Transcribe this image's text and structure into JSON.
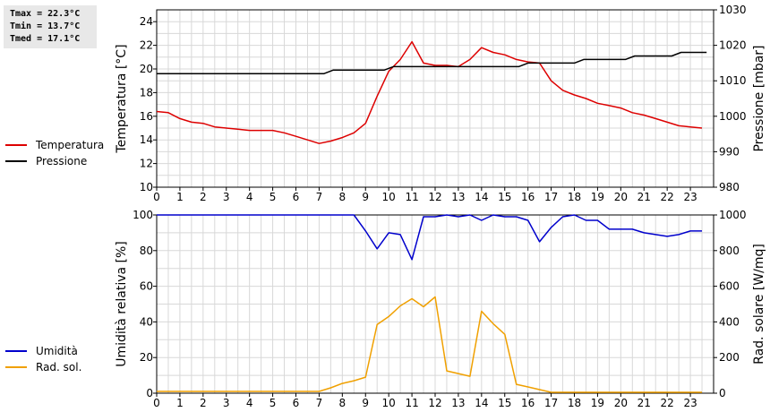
{
  "stats": {
    "tmax": "Tmax = 22.3°C",
    "tmin": "Tmin = 13.7°C",
    "tmed": "Tmed = 17.1°C"
  },
  "chart_data": [
    {
      "type": "line",
      "x_ticks": [
        "0",
        "1",
        "2",
        "3",
        "4",
        "5",
        "6",
        "7",
        "8",
        "9",
        "10",
        "11",
        "12",
        "13",
        "14",
        "15",
        "16",
        "17",
        "18",
        "19",
        "20",
        "21",
        "22",
        "23"
      ],
      "xlim": [
        0,
        24
      ],
      "grid": true,
      "legend_placement": "left",
      "left_axis": {
        "label": "Temperatura [°C]",
        "lim": [
          10,
          25
        ],
        "ticks": [
          10,
          12,
          14,
          16,
          18,
          20,
          22,
          24
        ]
      },
      "right_axis": {
        "label": "Pressione [mbar]",
        "lim": [
          980,
          1030
        ],
        "ticks": [
          980,
          990,
          1000,
          1010,
          1020,
          1030
        ]
      },
      "series": [
        {
          "name": "Temperatura",
          "color": "#dd0000",
          "axis": "left",
          "step": false,
          "x": [
            0,
            0.5,
            1,
            1.5,
            2,
            2.5,
            3,
            3.5,
            4,
            4.5,
            5,
            5.5,
            6,
            6.5,
            7,
            7.5,
            8,
            8.5,
            9,
            9.5,
            10,
            10.5,
            11,
            11.5,
            12,
            12.5,
            13,
            13.5,
            14,
            14.5,
            15,
            15.5,
            16,
            16.5,
            17,
            17.5,
            18,
            18.5,
            19,
            19.5,
            20,
            20.5,
            21,
            21.5,
            22,
            22.5,
            23,
            23.5
          ],
          "y": [
            16.4,
            16.3,
            15.8,
            15.5,
            15.4,
            15.1,
            15.0,
            14.9,
            14.8,
            14.8,
            14.8,
            14.6,
            14.3,
            14.0,
            13.7,
            13.9,
            14.2,
            14.6,
            15.4,
            17.7,
            19.8,
            20.8,
            22.3,
            20.5,
            20.3,
            20.3,
            20.2,
            20.8,
            21.8,
            21.4,
            21.2,
            20.8,
            20.6,
            20.5,
            19.0,
            18.2,
            17.8,
            17.5,
            17.1,
            16.9,
            16.7,
            16.3,
            16.1,
            15.8,
            15.5,
            15.2,
            15.1,
            15.0
          ]
        },
        {
          "name": "Pressione",
          "color": "#000000",
          "axis": "left",
          "step": true,
          "x": [
            0,
            7.2,
            7.6,
            9.8,
            10.2,
            15.6,
            16,
            18,
            18.4,
            20.2,
            20.6,
            22.2,
            22.6,
            23.7
          ],
          "y": [
            1012,
            1012,
            1013,
            1013,
            1014,
            1014,
            1015,
            1015,
            1016,
            1016,
            1017,
            1017,
            1018,
            1018
          ]
        }
      ]
    },
    {
      "type": "line",
      "x_ticks": [
        "0",
        "1",
        "2",
        "3",
        "4",
        "5",
        "6",
        "7",
        "8",
        "9",
        "10",
        "11",
        "12",
        "13",
        "14",
        "15",
        "16",
        "17",
        "18",
        "19",
        "20",
        "21",
        "22",
        "23"
      ],
      "xlim": [
        0,
        24
      ],
      "grid": true,
      "legend_placement": "left",
      "left_axis": {
        "label": "Umidità relativa [%]",
        "lim": [
          0,
          100
        ],
        "ticks": [
          0,
          20,
          40,
          60,
          80,
          100
        ]
      },
      "right_axis": {
        "label": "Rad. solare [W/mq]",
        "lim": [
          0,
          1000
        ],
        "ticks": [
          0,
          200,
          400,
          600,
          800,
          1000
        ]
      },
      "series": [
        {
          "name": "Umidità",
          "color": "#0000cc",
          "axis": "left",
          "step": false,
          "x": [
            0,
            8.5,
            9,
            9.5,
            10,
            10.5,
            11,
            11.5,
            12,
            12.5,
            13,
            13.5,
            14,
            14.5,
            15,
            15.5,
            16,
            16.5,
            17,
            17.5,
            18,
            18.5,
            19,
            19.5,
            20,
            20.5,
            21,
            21.5,
            22,
            22.5,
            23,
            23.5
          ],
          "y": [
            100,
            100,
            91,
            81,
            90,
            89,
            75,
            99,
            99,
            100,
            99,
            100,
            97,
            100,
            99,
            99,
            97,
            85,
            93,
            99,
            100,
            97,
            97,
            92,
            92,
            92,
            90,
            89,
            88,
            89,
            91,
            91
          ]
        },
        {
          "name": "Rad. sol.",
          "color": "#f0a000",
          "axis": "right",
          "step": false,
          "x": [
            0,
            7,
            7.5,
            8,
            8.5,
            9,
            9.5,
            10,
            10.5,
            11,
            11.5,
            12,
            12.5,
            13,
            13.5,
            14,
            14.5,
            15,
            15.5,
            16,
            16.5,
            17,
            17.5,
            18,
            23.5
          ],
          "y": [
            10,
            10,
            30,
            55,
            70,
            90,
            385,
            430,
            490,
            530,
            485,
            540,
            125,
            110,
            95,
            460,
            390,
            330,
            50,
            35,
            20,
            5,
            5,
            5,
            5
          ]
        }
      ]
    }
  ]
}
